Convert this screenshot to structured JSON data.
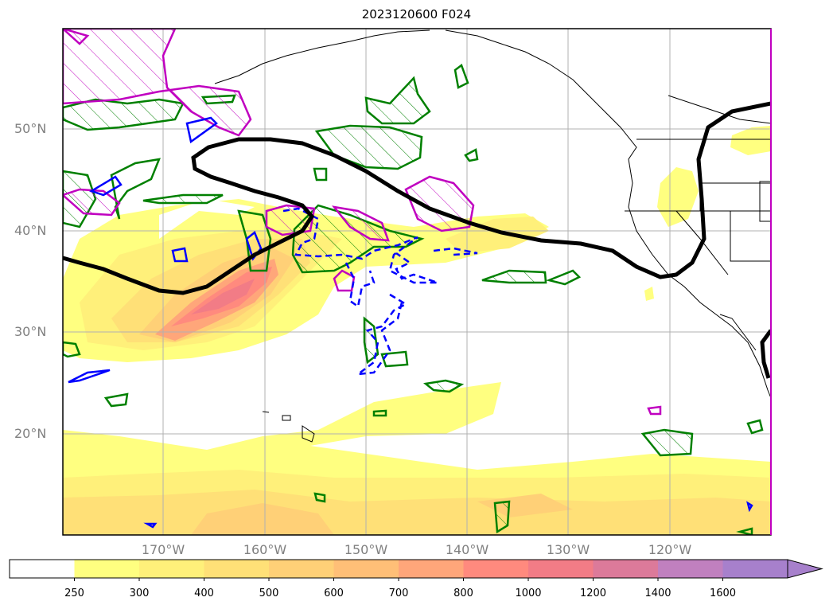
{
  "title": "2023120600 F024",
  "lat_labels": [
    "50°N",
    "40°N",
    "30°N",
    "20°N"
  ],
  "lon_labels": [
    "170°W",
    "160°W",
    "150°W",
    "140°W",
    "130°W",
    "120°W"
  ],
  "colorbar": {
    "ticks": [
      "250",
      "300",
      "400",
      "500",
      "600",
      "700",
      "800",
      "1000",
      "1200",
      "1400",
      "1600"
    ],
    "colors": [
      "#ffffff",
      "#ffff80",
      "#fff07a",
      "#ffe077",
      "#ffd077",
      "#ffbf77",
      "#ffa67a",
      "#ff8a7e",
      "#f27c86",
      "#dc7a9a",
      "#c080bf",
      "#a780cc"
    ]
  },
  "contour_colors": {
    "black": "#000000",
    "green": "#008000",
    "blue": "#0000ff",
    "magenta": "#c000c0"
  }
}
